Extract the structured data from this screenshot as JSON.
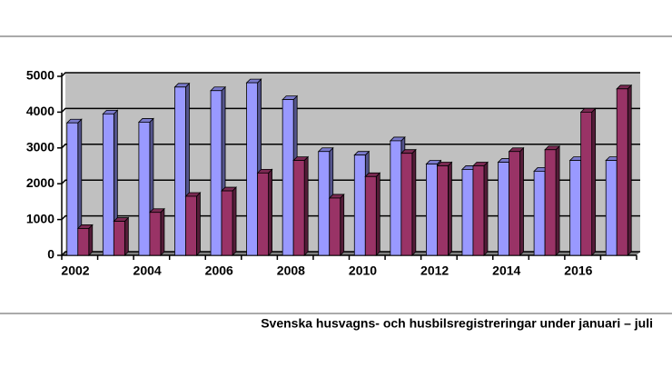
{
  "chart_data": {
    "type": "bar",
    "caption": "Svenska husvagns- och husbilsregistreringar under januari – juli",
    "categories": [
      "2002",
      null,
      "2004",
      null,
      "2006",
      null,
      "2008",
      null,
      "2010",
      null,
      "2012",
      null,
      "2014",
      null,
      "2016",
      null
    ],
    "series": [
      {
        "color": "#9999ff",
        "values": [
          3700,
          3950,
          3720,
          4700,
          4600,
          4820,
          4350,
          2900,
          2800,
          3200,
          2550,
          2400,
          2600,
          2350,
          2650,
          2650
        ]
      },
      {
        "color": "#993366",
        "values": [
          750,
          950,
          1200,
          1650,
          1800,
          2300,
          2650,
          1600,
          2200,
          2850,
          2500,
          2500,
          2900,
          2950,
          4000,
          4650
        ]
      }
    ],
    "ylim": [
      0,
      5000
    ],
    "yticks": [
      0,
      1000,
      2000,
      3000,
      4000,
      5000
    ],
    "grid": true
  }
}
